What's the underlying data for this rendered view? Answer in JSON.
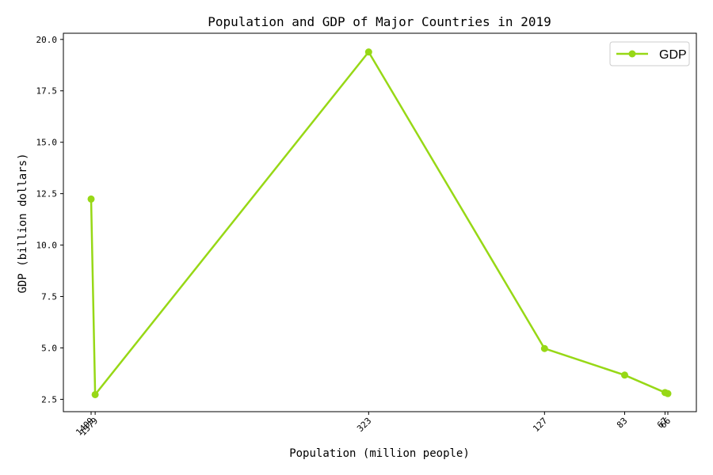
{
  "chart_data": {
    "type": "line",
    "title": "Population and GDP of Major Countries in 2019",
    "xlabel": "Population (million people)",
    "ylabel": "GDP (billion dollars)",
    "x_scale": "reversed-log",
    "x": [
      1409,
      1379,
      323,
      127,
      83,
      67,
      66
    ],
    "x_tick_labels": [
      "1409",
      "1379",
      "323",
      "127",
      "83",
      "67",
      "66"
    ],
    "series": [
      {
        "name": "GDP",
        "color": "#97d816",
        "marker": "circle",
        "values": [
          12.24,
          2.73,
          19.39,
          4.97,
          3.68,
          2.83,
          2.78
        ]
      }
    ],
    "ylim": [
      1.9,
      20.3
    ],
    "y_ticks": [
      2.5,
      5.0,
      7.5,
      10.0,
      12.5,
      15.0,
      17.5,
      20.0
    ],
    "y_tick_labels": [
      "2.5",
      "5.0",
      "7.5",
      "10.0",
      "12.5",
      "15.0",
      "17.5",
      "20.0"
    ],
    "grid": false,
    "legend_position": "top-right"
  }
}
